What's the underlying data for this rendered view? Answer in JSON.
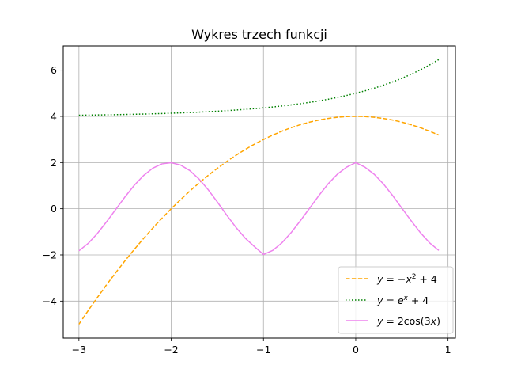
{
  "chart_data": {
    "type": "line",
    "title": "Wykres trzech funkcji",
    "xlabel": "",
    "ylabel": "",
    "xlim": [
      -3.17,
      1.08
    ],
    "ylim": [
      -5.6,
      7.05
    ],
    "grid": true,
    "legend_position": "bottom-right",
    "x_ticks": [
      -3,
      -2,
      -1,
      0,
      1
    ],
    "x_tick_labels": [
      "−3",
      "−2",
      "−1",
      "0",
      "1"
    ],
    "y_ticks": [
      -4,
      -2,
      0,
      2,
      4,
      6
    ],
    "y_tick_labels": [
      "−4",
      "−2",
      "0",
      "2",
      "4",
      "6"
    ],
    "x": [
      -3.0,
      -2.9,
      -2.8,
      -2.7,
      -2.6,
      -2.5,
      -2.4,
      -2.3,
      -2.2,
      -2.1,
      -2.0,
      -1.9,
      -1.8,
      -1.7,
      -1.6,
      -1.5,
      -1.4,
      -1.3,
      -1.2,
      -1.1,
      -1.0,
      -0.9,
      -0.8,
      -0.7,
      -0.6,
      -0.5,
      -0.4,
      -0.3,
      -0.2,
      -0.1,
      0.0,
      0.1,
      0.2,
      0.3,
      0.4,
      0.5,
      0.6,
      0.7,
      0.8,
      0.9
    ],
    "series": [
      {
        "key": "parabola",
        "name": "y = −x² + 4",
        "color": "#ffa500",
        "style": "dashed",
        "values": [
          -5.0,
          -4.41,
          -3.84,
          -3.29,
          -2.76,
          -2.25,
          -1.76,
          -1.29,
          -0.84,
          -0.41,
          0.0,
          0.39,
          0.76,
          1.11,
          1.44,
          1.75,
          2.04,
          2.31,
          2.56,
          2.79,
          3.0,
          3.19,
          3.36,
          3.51,
          3.64,
          3.75,
          3.84,
          3.91,
          3.96,
          3.99,
          4.0,
          3.99,
          3.96,
          3.91,
          3.84,
          3.75,
          3.64,
          3.51,
          3.36,
          3.19
        ]
      },
      {
        "key": "exponential",
        "name": "y = eˣ + 4",
        "color": "#008000",
        "style": "dotted",
        "values": [
          4.05,
          4.055,
          4.061,
          4.067,
          4.074,
          4.082,
          4.091,
          4.1,
          4.111,
          4.122,
          4.135,
          4.15,
          4.165,
          4.183,
          4.202,
          4.223,
          4.247,
          4.273,
          4.301,
          4.333,
          4.368,
          4.407,
          4.449,
          4.497,
          4.549,
          4.607,
          4.67,
          4.741,
          4.819,
          4.905,
          5.0,
          5.105,
          5.221,
          5.35,
          5.492,
          5.649,
          5.822,
          6.014,
          6.226,
          6.46
        ]
      },
      {
        "key": "cosine",
        "name": "y = 2cos(3x)",
        "color": "#ee82ee",
        "style": "solid",
        "values": [
          -1.822,
          -1.502,
          -1.069,
          -0.561,
          -0.022,
          0.516,
          1.016,
          1.437,
          1.755,
          1.944,
          1.992,
          1.895,
          1.657,
          1.293,
          0.827,
          0.292,
          -0.266,
          -0.799,
          -1.264,
          -1.634,
          -1.98,
          -1.807,
          -1.475,
          -1.033,
          -0.518,
          0.024,
          0.57,
          1.074,
          1.492,
          1.799,
          2.0,
          1.799,
          1.492,
          1.074,
          0.57,
          0.024,
          -0.518,
          -1.033,
          -1.475,
          -1.807
        ]
      }
    ]
  }
}
